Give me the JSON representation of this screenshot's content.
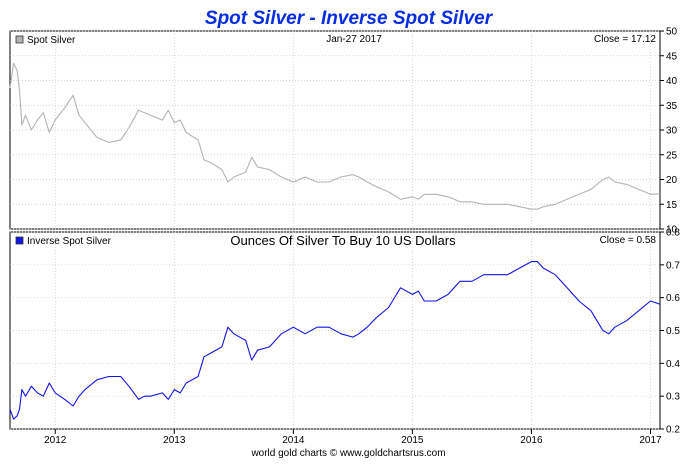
{
  "title": "Spot Silver - Inverse Spot Silver",
  "footer": "world gold charts © www.goldchartsrus.com",
  "colors": {
    "title": "#0a2ce0",
    "silver_line": "#b4b4b4",
    "inverse_line": "#1414e6",
    "grid": "#c8c8c8",
    "frame": "#000000"
  },
  "chart_data": [
    {
      "type": "line",
      "legend": "Spot Silver",
      "date_label": "Jan-27  2017",
      "close_label": "Close = 17.12",
      "ylim": [
        10,
        50
      ],
      "y_ticks": [
        "10",
        "15",
        "20",
        "25",
        "30",
        "35",
        "40",
        "45",
        "50"
      ],
      "x_ticks": [
        "2012",
        "2013",
        "2014",
        "2015",
        "2016",
        "2017"
      ],
      "xlim": [
        2011.62,
        2017.08
      ],
      "grid": true,
      "legend_position": "top-left",
      "series": [
        {
          "x": [
            2011.62,
            2011.65,
            2011.68,
            2011.7,
            2011.72,
            2011.75,
            2011.8,
            2011.85,
            2011.9,
            2011.95,
            2012.0,
            2012.08,
            2012.15,
            2012.2,
            2012.25,
            2012.35,
            2012.45,
            2012.55,
            2012.62,
            2012.7,
            2012.75,
            2012.8,
            2012.9,
            2012.95,
            2013.0,
            2013.05,
            2013.1,
            2013.2,
            2013.25,
            2013.3,
            2013.4,
            2013.45,
            2013.5,
            2013.6,
            2013.65,
            2013.7,
            2013.8,
            2013.9,
            2014.0,
            2014.1,
            2014.2,
            2014.3,
            2014.4,
            2014.5,
            2014.55,
            2014.62,
            2014.7,
            2014.8,
            2014.9,
            2015.0,
            2015.05,
            2015.1,
            2015.2,
            2015.3,
            2015.4,
            2015.5,
            2015.6,
            2015.7,
            2015.8,
            2015.9,
            2016.0,
            2016.05,
            2016.1,
            2016.2,
            2016.3,
            2016.4,
            2016.5,
            2016.55,
            2016.6,
            2016.65,
            2016.7,
            2016.8,
            2016.9,
            2017.0,
            2017.08
          ],
          "y": [
            38.5,
            43.5,
            42.0,
            38.0,
            31.0,
            33.0,
            30.0,
            32.0,
            33.5,
            29.5,
            32.0,
            34.5,
            37.0,
            33.0,
            31.5,
            28.5,
            27.5,
            28.0,
            30.5,
            34.0,
            33.5,
            33.0,
            32.0,
            34.0,
            31.5,
            32.0,
            29.5,
            28.0,
            24.0,
            23.5,
            22.0,
            19.5,
            20.5,
            21.5,
            24.5,
            22.5,
            22.0,
            20.5,
            19.5,
            20.5,
            19.5,
            19.5,
            20.5,
            21.0,
            20.5,
            19.5,
            18.5,
            17.5,
            16.0,
            16.5,
            16.0,
            17.0,
            17.0,
            16.5,
            15.5,
            15.5,
            15.0,
            15.0,
            15.0,
            14.5,
            14.0,
            14.0,
            14.5,
            15.0,
            16.0,
            17.0,
            18.0,
            19.0,
            20.0,
            20.5,
            19.5,
            19.0,
            18.0,
            17.0,
            17.12
          ]
        }
      ]
    },
    {
      "type": "line",
      "legend": "Inverse Spot Silver",
      "subtitle": "Ounces Of Silver To Buy 10 US Dollars",
      "close_label": "Close = 0.58",
      "ylim": [
        0.2,
        0.8
      ],
      "y_ticks": [
        "0.2",
        "0.3",
        "0.4",
        "0.5",
        "0.6",
        "0.7",
        "0.8"
      ],
      "x_ticks": [
        "2012",
        "2013",
        "2014",
        "2015",
        "2016",
        "2017"
      ],
      "xlim": [
        2011.62,
        2017.08
      ],
      "grid": true,
      "legend_position": "top-left",
      "series": [
        {
          "x": [
            2011.62,
            2011.65,
            2011.68,
            2011.7,
            2011.72,
            2011.75,
            2011.8,
            2011.85,
            2011.9,
            2011.95,
            2012.0,
            2012.08,
            2012.15,
            2012.2,
            2012.25,
            2012.35,
            2012.45,
            2012.55,
            2012.62,
            2012.7,
            2012.75,
            2012.8,
            2012.9,
            2012.95,
            2013.0,
            2013.05,
            2013.1,
            2013.2,
            2013.25,
            2013.3,
            2013.4,
            2013.45,
            2013.5,
            2013.6,
            2013.65,
            2013.7,
            2013.8,
            2013.9,
            2014.0,
            2014.1,
            2014.2,
            2014.3,
            2014.4,
            2014.5,
            2014.55,
            2014.62,
            2014.7,
            2014.8,
            2014.9,
            2015.0,
            2015.05,
            2015.1,
            2015.2,
            2015.3,
            2015.4,
            2015.5,
            2015.6,
            2015.7,
            2015.8,
            2015.9,
            2016.0,
            2016.05,
            2016.1,
            2016.2,
            2016.3,
            2016.4,
            2016.5,
            2016.55,
            2016.6,
            2016.65,
            2016.7,
            2016.8,
            2016.9,
            2017.0,
            2017.08
          ],
          "y": [
            0.26,
            0.23,
            0.24,
            0.26,
            0.32,
            0.3,
            0.33,
            0.31,
            0.3,
            0.34,
            0.31,
            0.29,
            0.27,
            0.3,
            0.32,
            0.35,
            0.36,
            0.36,
            0.33,
            0.29,
            0.3,
            0.3,
            0.31,
            0.29,
            0.32,
            0.31,
            0.34,
            0.36,
            0.42,
            0.43,
            0.45,
            0.51,
            0.49,
            0.47,
            0.41,
            0.44,
            0.45,
            0.49,
            0.51,
            0.49,
            0.51,
            0.51,
            0.49,
            0.48,
            0.49,
            0.51,
            0.54,
            0.57,
            0.63,
            0.61,
            0.62,
            0.59,
            0.59,
            0.61,
            0.65,
            0.65,
            0.67,
            0.67,
            0.67,
            0.69,
            0.71,
            0.71,
            0.69,
            0.67,
            0.63,
            0.59,
            0.56,
            0.53,
            0.5,
            0.49,
            0.51,
            0.53,
            0.56,
            0.59,
            0.58
          ]
        }
      ]
    }
  ]
}
